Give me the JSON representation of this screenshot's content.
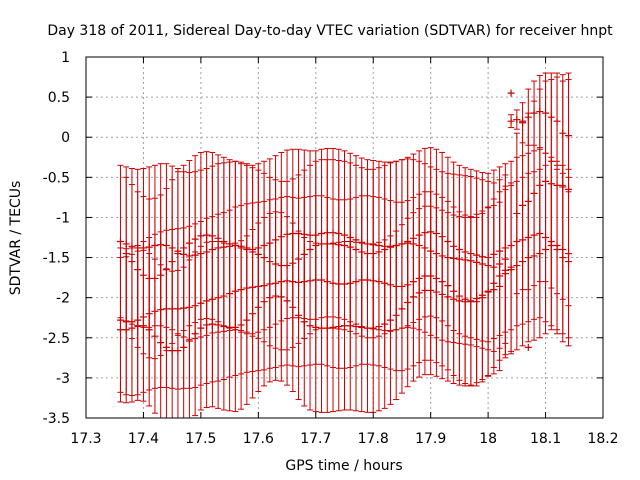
{
  "chart_data": {
    "type": "scatter",
    "title": "Day 318 of 2011, Sidereal Day-to-day VTEC variation (SDTVAR) for receiver hnpt",
    "xlabel": "GPS time / hours",
    "ylabel": "SDTVAR / TECUs",
    "xlim": [
      17.3,
      18.2
    ],
    "ylim": [
      -3.5,
      1
    ],
    "x_ticks": [
      "17.3",
      "17.4",
      "17.5",
      "17.6",
      "17.7",
      "17.8",
      "17.9",
      "18",
      "18.1",
      "18.2"
    ],
    "y_ticks": [
      "-3.5",
      "-3",
      "-2.5",
      "-2",
      "-1.5",
      "-1",
      "-0.5",
      "0",
      "0.5",
      "1"
    ],
    "grid": true,
    "marker": "+",
    "error_bars": true,
    "color": "#cc0000",
    "series": [
      {
        "x": [
          17.36,
          17.37,
          17.38,
          17.39,
          17.4,
          17.41,
          17.42,
          17.43,
          17.44,
          17.45,
          17.46,
          17.47,
          17.48,
          17.49,
          17.5,
          17.51,
          17.52,
          17.53,
          17.54,
          17.55,
          17.56,
          17.57,
          17.58,
          17.59,
          17.6,
          17.61,
          17.62,
          17.63,
          17.64,
          17.65,
          17.66,
          17.67,
          17.68,
          17.69,
          17.7,
          17.71,
          17.72,
          17.73,
          17.74,
          17.75,
          17.76,
          17.77,
          17.78,
          17.79,
          17.8,
          17.81,
          17.82,
          17.83,
          17.84,
          17.85,
          17.86,
          17.87,
          17.88,
          17.89,
          17.9,
          17.91,
          17.92,
          17.93,
          17.94,
          17.95,
          17.96,
          17.97,
          17.98,
          17.99,
          18.0,
          18.01,
          18.02,
          18.03,
          18.04,
          18.05,
          18.06,
          18.07,
          18.08,
          18.09,
          18.1,
          18.11,
          18.12,
          18.13,
          18.14
        ],
        "y": [
          -1.3,
          -1.33,
          -1.36,
          -1.38,
          -1.38,
          -1.37,
          -1.35,
          -1.34,
          -1.35,
          -1.38,
          -1.42,
          -1.46,
          -1.48,
          -1.47,
          -1.45,
          -1.43,
          -1.4,
          -1.38,
          -1.37,
          -1.36,
          -1.35,
          -1.36,
          -1.38,
          -1.4,
          -1.38,
          -1.35,
          -1.32,
          -1.28,
          -1.24,
          -1.21,
          -1.2,
          -1.2,
          -1.21,
          -1.22,
          -1.22,
          -1.2,
          -1.19,
          -1.19,
          -1.2,
          -1.22,
          -1.25,
          -1.28,
          -1.31,
          -1.33,
          -1.34,
          -1.35,
          -1.36,
          -1.36,
          -1.35,
          -1.33,
          -1.3,
          -1.26,
          -1.22,
          -1.19,
          -1.18,
          -1.2,
          -1.24,
          -1.3,
          -1.36,
          -1.4,
          -1.43,
          -1.45,
          -1.47,
          -1.49,
          -1.5,
          -1.46,
          -1.42,
          -1.38,
          -1.35,
          -1.3,
          -1.28,
          -1.25,
          -1.22,
          -1.2,
          -1.25,
          -1.3,
          -1.35,
          -1.4,
          -1.45
        ],
        "err": [
          0.95,
          0.96,
          0.97,
          0.98,
          0.99,
          1.0,
          1.0,
          1.01,
          1.02,
          1.02,
          1.03,
          1.03,
          1.04,
          1.04,
          1.04,
          1.04,
          1.04,
          1.05,
          1.05,
          1.05,
          1.05,
          1.05,
          1.05,
          1.05,
          1.05,
          1.05,
          1.05,
          1.05,
          1.05,
          1.05,
          1.05,
          1.05,
          1.05,
          1.05,
          1.05,
          1.05,
          1.05,
          1.05,
          1.05,
          1.05,
          1.05,
          1.05,
          1.05,
          1.05,
          1.05,
          1.05,
          1.05,
          1.05,
          1.05,
          1.05,
          1.05,
          1.05,
          1.05,
          1.05,
          1.05,
          1.05,
          1.05,
          1.05,
          1.05,
          1.05,
          1.05,
          1.05,
          1.05,
          1.05,
          1.05,
          1.05,
          1.05,
          1.05,
          1.05,
          1.05,
          1.05,
          1.05,
          1.05,
          1.05,
          1.05,
          1.05,
          1.05,
          1.05,
          1.05
        ]
      },
      {
        "x": [
          17.37,
          17.38,
          17.39,
          17.4,
          17.41,
          17.42,
          17.43,
          17.44,
          17.45,
          17.46,
          17.47,
          17.48,
          17.49,
          17.5,
          17.51,
          17.52,
          17.53,
          17.54,
          17.55,
          17.56,
          17.57,
          17.58,
          17.59,
          17.6,
          17.61,
          17.62,
          17.63,
          17.64,
          17.65,
          17.66,
          17.67,
          17.68,
          17.69,
          17.7,
          17.71,
          17.72,
          17.73,
          17.74,
          17.75,
          17.76,
          17.77,
          17.78,
          17.79,
          17.8,
          17.81,
          17.82,
          17.83,
          17.84,
          17.85,
          17.86,
          17.87,
          17.88,
          17.89,
          17.9,
          17.91,
          17.92,
          17.93,
          17.94,
          17.95,
          17.96,
          17.97,
          17.98,
          17.99,
          18.0,
          18.01,
          18.02,
          18.03
        ],
        "y": [
          -1.45,
          -1.55,
          -1.65,
          -1.72,
          -1.76,
          -1.76,
          -1.72,
          -1.65,
          -1.55,
          -1.45,
          -1.38,
          -1.32,
          -1.27,
          -1.23,
          -1.22,
          -1.23,
          -1.26,
          -1.3,
          -1.33,
          -1.35,
          -1.38,
          -1.4,
          -1.43,
          -1.46,
          -1.5,
          -1.55,
          -1.58,
          -1.6,
          -1.6,
          -1.57,
          -1.52,
          -1.46,
          -1.4,
          -1.35,
          -1.33,
          -1.33,
          -1.33,
          -1.34,
          -1.35,
          -1.37,
          -1.4,
          -1.43,
          -1.45,
          -1.45,
          -1.43,
          -1.4,
          -1.37,
          -1.35,
          -1.33,
          -1.32,
          -1.33,
          -1.35,
          -1.38,
          -1.42,
          -1.45,
          -1.48,
          -1.5,
          -1.51,
          -1.52,
          -1.53,
          -1.54,
          -1.56,
          -1.58,
          -1.6,
          -1.62,
          -1.58,
          -1.52
        ],
        "err": [
          0.95,
          0.96,
          0.97,
          0.98,
          0.99,
          1.0,
          1.0,
          1.01,
          1.02,
          1.02,
          1.03,
          1.03,
          1.04,
          1.04,
          1.04,
          1.04,
          1.04,
          1.05,
          1.05,
          1.05,
          1.05,
          1.05,
          1.05,
          1.05,
          1.05,
          1.05,
          1.05,
          1.05,
          1.05,
          1.05,
          1.05,
          1.05,
          1.05,
          1.05,
          1.05,
          1.05,
          1.05,
          1.05,
          1.05,
          1.05,
          1.05,
          1.05,
          1.05,
          1.05,
          1.05,
          1.05,
          1.05,
          1.05,
          1.05,
          1.05,
          1.05,
          1.05,
          1.05,
          1.05,
          1.05,
          1.05,
          1.05,
          1.05,
          1.05,
          1.05,
          1.05,
          1.05,
          1.05,
          1.05,
          1.05,
          1.05,
          1.05
        ]
      },
      {
        "x": [
          17.36,
          17.37,
          17.38,
          17.39,
          17.4,
          17.41,
          17.42,
          17.43,
          17.44,
          17.45,
          17.46,
          17.47,
          17.48,
          17.49,
          17.5,
          17.51,
          17.52,
          17.53,
          17.54,
          17.55,
          17.56,
          17.57,
          17.58,
          17.59,
          17.6,
          17.61,
          17.62,
          17.63,
          17.64,
          17.65,
          17.66,
          17.67,
          17.68,
          17.69,
          17.7,
          17.71,
          17.72,
          17.73,
          17.74,
          17.75,
          17.76,
          17.77,
          17.78,
          17.79,
          17.8,
          17.81,
          17.82,
          17.83,
          17.84,
          17.85,
          17.86,
          17.87,
          17.88,
          17.89,
          17.9,
          17.91,
          17.92,
          17.93,
          17.94,
          17.95,
          17.96,
          17.97,
          17.98,
          17.99,
          18.0,
          18.01,
          18.02,
          18.03,
          18.04
        ],
        "y": [
          -2.28,
          -2.3,
          -2.3,
          -2.28,
          -2.24,
          -2.2,
          -2.17,
          -2.15,
          -2.14,
          -2.14,
          -2.14,
          -2.13,
          -2.12,
          -2.1,
          -2.07,
          -2.04,
          -2.02,
          -2.0,
          -1.98,
          -1.95,
          -1.92,
          -1.9,
          -1.88,
          -1.87,
          -1.86,
          -1.85,
          -1.83,
          -1.82,
          -1.8,
          -1.79,
          -1.8,
          -1.81,
          -1.8,
          -1.79,
          -1.78,
          -1.78,
          -1.8,
          -1.82,
          -1.83,
          -1.83,
          -1.82,
          -1.8,
          -1.78,
          -1.78,
          -1.79,
          -1.8,
          -1.82,
          -1.84,
          -1.86,
          -1.86,
          -1.84,
          -1.8,
          -1.76,
          -1.73,
          -1.73,
          -1.76,
          -1.8,
          -1.85,
          -1.92,
          -1.98,
          -2.02,
          -2.05,
          -2.05,
          -2.0,
          -1.92,
          -1.82,
          -1.73,
          -1.66,
          -1.62
        ],
        "err": [
          0.9,
          0.91,
          0.92,
          0.93,
          0.94,
          0.95,
          0.96,
          0.97,
          0.98,
          0.99,
          1.0,
          1.0,
          1.01,
          1.02,
          1.02,
          1.03,
          1.03,
          1.04,
          1.04,
          1.04,
          1.05,
          1.05,
          1.05,
          1.05,
          1.05,
          1.05,
          1.05,
          1.05,
          1.05,
          1.05,
          1.05,
          1.05,
          1.05,
          1.05,
          1.05,
          1.05,
          1.05,
          1.05,
          1.05,
          1.05,
          1.05,
          1.05,
          1.05,
          1.05,
          1.05,
          1.05,
          1.05,
          1.05,
          1.05,
          1.05,
          1.05,
          1.05,
          1.05,
          1.05,
          1.05,
          1.05,
          1.05,
          1.05,
          1.05,
          1.05,
          1.05,
          1.05,
          1.05,
          1.05,
          1.05,
          1.05,
          1.05,
          1.05,
          1.05
        ]
      },
      {
        "x": [
          17.36,
          17.37,
          17.38,
          17.39,
          17.4,
          17.41,
          17.42,
          17.43,
          17.44,
          17.45,
          17.46,
          17.47,
          17.48,
          17.49,
          17.5,
          17.51,
          17.52,
          17.53,
          17.54,
          17.55,
          17.56,
          17.57,
          17.58,
          17.59,
          17.6,
          17.61,
          17.62,
          17.63,
          17.64,
          17.65,
          17.66,
          17.67,
          17.68,
          17.69,
          17.7,
          17.71,
          17.72,
          17.73,
          17.74,
          17.75,
          17.76,
          17.77,
          17.78,
          17.79,
          17.8,
          17.81,
          17.82,
          17.83,
          17.84,
          17.85,
          17.86,
          17.87,
          17.88,
          17.89,
          17.9,
          17.91,
          17.92,
          17.93,
          17.94,
          17.95,
          17.96,
          17.97,
          17.98,
          17.99,
          18.0,
          18.01,
          18.02
        ],
        "y": [
          -2.4,
          -2.4,
          -2.38,
          -2.35,
          -2.35,
          -2.4,
          -2.48,
          -2.56,
          -2.62,
          -2.66,
          -2.66,
          -2.62,
          -2.54,
          -2.45,
          -2.38,
          -2.34,
          -2.33,
          -2.34,
          -2.36,
          -2.37,
          -2.37,
          -2.34,
          -2.28,
          -2.2,
          -2.12,
          -2.05,
          -2.0,
          -1.98,
          -1.99,
          -2.04,
          -2.12,
          -2.22,
          -2.3,
          -2.35,
          -2.37,
          -2.38,
          -2.38,
          -2.37,
          -2.36,
          -2.35,
          -2.35,
          -2.36,
          -2.37,
          -2.38,
          -2.38,
          -2.36,
          -2.33,
          -2.28,
          -2.22,
          -2.14,
          -2.06,
          -1.99,
          -1.94,
          -1.91,
          -1.91,
          -1.93,
          -1.96,
          -1.99,
          -2.02,
          -2.04,
          -2.05,
          -2.04,
          -2.01,
          -1.97,
          -1.93,
          -1.9,
          -1.86
        ],
        "err": [
          0.9,
          0.91,
          0.92,
          0.93,
          0.94,
          0.95,
          0.96,
          0.97,
          0.98,
          0.99,
          1.0,
          1.0,
          1.01,
          1.02,
          1.02,
          1.03,
          1.03,
          1.04,
          1.04,
          1.04,
          1.05,
          1.05,
          1.05,
          1.05,
          1.05,
          1.05,
          1.05,
          1.05,
          1.05,
          1.05,
          1.05,
          1.05,
          1.05,
          1.05,
          1.05,
          1.05,
          1.05,
          1.05,
          1.05,
          1.05,
          1.05,
          1.05,
          1.05,
          1.05,
          1.05,
          1.05,
          1.05,
          1.05,
          1.05,
          1.05,
          1.05,
          1.05,
          1.05,
          1.05,
          1.05,
          1.05,
          1.05,
          1.05,
          1.05,
          1.05,
          1.05,
          1.05,
          1.05,
          1.05,
          1.05,
          1.05,
          1.05
        ]
      },
      {
        "x": [
          18.04,
          18.05,
          18.06,
          18.07,
          18.08,
          18.09,
          18.1,
          18.11,
          18.12,
          18.13,
          18.14
        ],
        "y": [
          0.2,
          0.22,
          0.18,
          0.25,
          0.3,
          0.32,
          0.3,
          0.25,
          0.2,
          0.05,
          0.02
        ],
        "err": [
          0.08,
          0.12,
          0.25,
          0.35,
          0.4,
          0.45,
          0.5,
          0.55,
          0.6,
          0.65,
          0.7
        ]
      },
      {
        "x": [
          18.05,
          18.06,
          18.07,
          18.08,
          18.09,
          18.1,
          18.11,
          18.12,
          18.13,
          18.14
        ],
        "y": [
          -0.95,
          -0.85,
          -0.8,
          -0.7,
          -0.6,
          -0.55,
          -0.58,
          -0.6,
          -0.62,
          -0.65
        ],
        "err": [
          1.0,
          1.05,
          1.1,
          1.15,
          1.2,
          1.25,
          1.3,
          1.35,
          1.4,
          1.45
        ]
      },
      {
        "x": [
          18.03,
          18.04,
          18.05,
          18.06,
          18.07,
          18.08,
          18.09,
          18.1,
          18.11,
          18.12,
          18.13,
          18.14
        ],
        "y": [
          -1.7,
          -1.65,
          -1.6,
          -1.55,
          -1.5,
          -1.48,
          -1.45,
          -1.4,
          -1.35,
          -1.4,
          -1.5,
          -1.55
        ],
        "err": [
          1.05,
          1.05,
          1.05,
          1.05,
          1.05,
          1.05,
          1.05,
          1.05,
          1.05,
          1.05,
          1.05,
          1.05
        ]
      },
      {
        "x": [
          18.04,
          18.06,
          18.07
        ],
        "y": [
          0.55,
          0.2,
          -2.62
        ],
        "err": [
          0,
          0,
          0
        ]
      }
    ]
  }
}
